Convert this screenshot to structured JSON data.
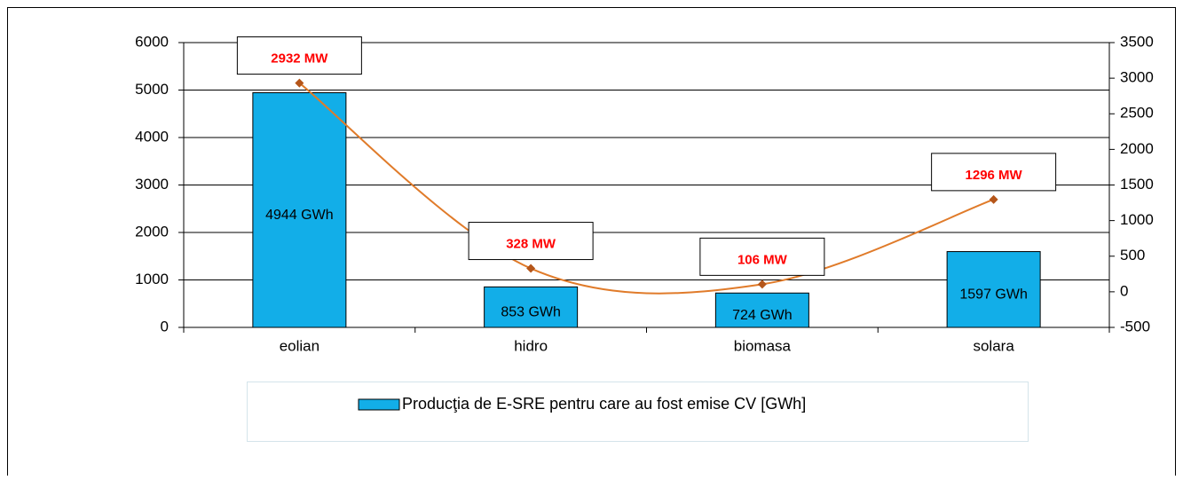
{
  "chart_data": {
    "type": "bar",
    "categories": [
      "eolian",
      "hidro",
      "biomasa",
      "solara"
    ],
    "series": [
      {
        "name": "Producţia de E-SRE pentru care au fost emise CV [GWh]",
        "type": "bar",
        "color": "#12aee8",
        "values": [
          4944,
          853,
          724,
          1597
        ],
        "value_labels": [
          "4944 GWh",
          "853 GWh",
          "724 GWh",
          "1597 GWh"
        ]
      },
      {
        "type": "line",
        "axis": "y2",
        "color": "#e07b2a",
        "smooth": true,
        "values": [
          2932,
          328,
          106,
          1296
        ],
        "value_labels": [
          "2932 MW",
          "328 MW",
          "106 MW",
          "1296 MW"
        ]
      }
    ],
    "ylim": [
      0,
      6000
    ],
    "yticks": [
      0,
      1000,
      2000,
      3000,
      4000,
      5000,
      6000
    ],
    "y2lim": [
      -500,
      3500
    ],
    "y2ticks": [
      -500,
      0,
      500,
      1000,
      1500,
      2000,
      2500,
      3000,
      3500
    ],
    "grid": true,
    "legend": "bottom"
  }
}
